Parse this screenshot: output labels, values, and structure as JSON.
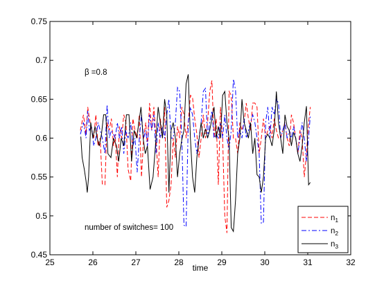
{
  "chart_data": {
    "type": "line",
    "xlabel": "time",
    "ylabel": "",
    "xlim": [
      25,
      32
    ],
    "ylim": [
      0.45,
      0.75
    ],
    "xticks": [
      "25",
      "26",
      "27",
      "28",
      "29",
      "30",
      "31",
      "32"
    ],
    "yticks": [
      "0.45",
      "0.5",
      "0.55",
      "0.6",
      "0.65",
      "0.7",
      "0.75"
    ],
    "grid": false,
    "legend_position": "bottom-right",
    "annotations": {
      "beta": "β =0.8",
      "switches": "number of switches=   100"
    },
    "series": [
      {
        "name": "n1",
        "label_main": "n",
        "label_sub": "1",
        "color": "#ff0000",
        "dash": "6,3",
        "x": [
          25.71,
          25.78,
          25.84,
          25.88,
          25.92,
          25.97,
          26.02,
          26.07,
          26.12,
          26.17,
          26.22,
          26.28,
          26.33,
          26.38,
          26.43,
          26.48,
          26.52,
          26.57,
          26.62,
          26.67,
          26.72,
          26.77,
          26.82,
          26.88,
          26.93,
          26.98,
          27.03,
          27.08,
          27.13,
          27.18,
          27.23,
          27.27,
          27.32,
          27.37,
          27.42,
          27.47,
          27.52,
          27.57,
          27.62,
          27.67,
          27.72,
          27.77,
          27.82,
          27.87,
          27.92,
          27.97,
          28.02,
          28.07,
          28.12,
          28.17,
          28.22,
          28.27,
          28.32,
          28.37,
          28.42,
          28.47,
          28.52,
          28.57,
          28.62,
          28.67,
          28.72,
          28.77,
          28.82,
          28.87,
          28.92,
          28.97,
          29.02,
          29.07,
          29.12,
          29.17,
          29.22,
          29.27,
          29.32,
          29.37,
          29.42,
          29.47,
          29.52,
          29.57,
          29.62,
          29.67,
          29.72,
          29.77,
          29.82,
          29.87,
          29.92,
          29.97,
          30.02,
          30.07,
          30.12,
          30.17,
          30.22,
          30.27,
          30.32,
          30.37,
          30.42,
          30.47,
          30.52,
          30.57,
          30.62,
          30.67,
          30.72,
          30.77,
          30.82,
          30.87,
          30.92,
          30.97,
          31.02,
          31.06
        ],
        "y": [
          0.61,
          0.63,
          0.605,
          0.64,
          0.625,
          0.61,
          0.6,
          0.63,
          0.59,
          0.6,
          0.541,
          0.54,
          0.62,
          0.61,
          0.625,
          0.59,
          0.605,
          0.55,
          0.615,
          0.6,
          0.63,
          0.62,
          0.56,
          0.545,
          0.625,
          0.61,
          0.6,
          0.63,
          0.55,
          0.6,
          0.62,
          0.59,
          0.645,
          0.61,
          0.64,
          0.6,
          0.55,
          0.625,
          0.6,
          0.64,
          0.511,
          0.52,
          0.54,
          0.6,
          0.575,
          0.615,
          0.6,
          0.64,
          0.63,
          0.6,
          0.62,
          0.655,
          0.652,
          0.625,
          0.605,
          0.575,
          0.6,
          0.63,
          0.6,
          0.62,
          0.66,
          0.674,
          0.6,
          0.625,
          0.54,
          0.64,
          0.6,
          0.5,
          0.478,
          0.66,
          0.655,
          0.6,
          0.6,
          0.58,
          0.62,
          0.61,
          0.62,
          0.645,
          0.625,
          0.61,
          0.645,
          0.645,
          0.64,
          0.58,
          0.6,
          0.625,
          0.6,
          0.61,
          0.615,
          0.6,
          0.625,
          0.61,
          0.6,
          0.6,
          0.61,
          0.62,
          0.6,
          0.59,
          0.63,
          0.62,
          0.6,
          0.58,
          0.61,
          0.6,
          0.55,
          0.58,
          0.62,
          0.64
        ]
      },
      {
        "name": "n2",
        "label_main": "n",
        "label_sub": "2",
        "color": "#0000ff",
        "dash": "7,3,2,3",
        "x": [
          25.71,
          25.78,
          25.84,
          25.88,
          25.92,
          25.97,
          26.02,
          26.07,
          26.12,
          26.17,
          26.22,
          26.28,
          26.33,
          26.38,
          26.43,
          26.48,
          26.52,
          26.57,
          26.62,
          26.67,
          26.72,
          26.77,
          26.82,
          26.88,
          26.93,
          26.98,
          27.03,
          27.08,
          27.13,
          27.18,
          27.23,
          27.27,
          27.32,
          27.37,
          27.42,
          27.47,
          27.52,
          27.57,
          27.62,
          27.67,
          27.72,
          27.77,
          27.82,
          27.87,
          27.92,
          27.97,
          28.02,
          28.07,
          28.12,
          28.17,
          28.22,
          28.27,
          28.32,
          28.37,
          28.42,
          28.47,
          28.52,
          28.57,
          28.62,
          28.67,
          28.72,
          28.77,
          28.82,
          28.87,
          28.92,
          28.97,
          29.02,
          29.07,
          29.12,
          29.17,
          29.22,
          29.27,
          29.32,
          29.37,
          29.42,
          29.47,
          29.52,
          29.57,
          29.62,
          29.67,
          29.72,
          29.77,
          29.82,
          29.87,
          29.92,
          29.97,
          30.02,
          30.07,
          30.12,
          30.17,
          30.22,
          30.27,
          30.32,
          30.37,
          30.42,
          30.47,
          30.52,
          30.57,
          30.62,
          30.67,
          30.72,
          30.77,
          30.82,
          30.87,
          30.92,
          30.97,
          31.02,
          31.06
        ],
        "y": [
          0.605,
          0.62,
          0.6,
          0.635,
          0.61,
          0.615,
          0.59,
          0.6,
          0.62,
          0.61,
          0.6,
          0.58,
          0.643,
          0.6,
          0.61,
          0.605,
          0.6,
          0.62,
          0.6,
          0.615,
          0.58,
          0.61,
          0.6,
          0.62,
          0.59,
          0.6,
          0.556,
          0.6,
          0.63,
          0.6,
          0.61,
          0.59,
          0.63,
          0.61,
          0.63,
          0.58,
          0.62,
          0.6,
          0.615,
          0.6,
          0.63,
          0.65,
          0.6,
          0.6,
          0.62,
          0.665,
          0.66,
          0.6,
          0.488,
          0.486,
          0.62,
          0.64,
          0.63,
          0.6,
          0.58,
          0.6,
          0.62,
          0.66,
          0.664,
          0.6,
          0.62,
          0.635,
          0.6,
          0.605,
          0.6,
          0.62,
          0.6,
          0.63,
          0.6,
          0.585,
          0.61,
          0.676,
          0.662,
          0.6,
          0.61,
          0.6,
          0.625,
          0.6,
          0.61,
          0.62,
          0.63,
          0.62,
          0.6,
          0.58,
          0.49,
          0.492,
          0.62,
          0.64,
          0.6,
          0.64,
          0.63,
          0.65,
          0.645,
          0.6,
          0.61,
          0.62,
          0.6,
          0.61,
          0.6,
          0.615,
          0.6,
          0.58,
          0.6,
          0.62,
          0.6,
          0.57,
          0.6,
          0.63
        ]
      },
      {
        "name": "n3",
        "label_main": "n",
        "label_sub": "3",
        "color": "#000000",
        "dash": "",
        "x": [
          25.72,
          25.75,
          25.8,
          25.84,
          25.87,
          25.9,
          25.95,
          26.0,
          26.05,
          26.1,
          26.15,
          26.2,
          26.25,
          26.3,
          26.35,
          26.42,
          26.48,
          26.55,
          26.6,
          26.66,
          26.72,
          26.78,
          26.84,
          26.9,
          26.96,
          27.02,
          27.07,
          27.12,
          27.17,
          27.22,
          27.27,
          27.33,
          27.4,
          27.47,
          27.52,
          27.57,
          27.62,
          27.67,
          27.72,
          27.77,
          27.82,
          27.87,
          27.92,
          27.97,
          28.02,
          28.07,
          28.12,
          28.17,
          28.22,
          28.27,
          28.32,
          28.37,
          28.42,
          28.47,
          28.52,
          28.57,
          28.62,
          28.67,
          28.72,
          28.77,
          28.82,
          28.87,
          28.92,
          28.97,
          29.02,
          29.07,
          29.12,
          29.17,
          29.22,
          29.27,
          29.32,
          29.37,
          29.42,
          29.47,
          29.52,
          29.57,
          29.62,
          29.67,
          29.72,
          29.77,
          29.82,
          29.87,
          29.92,
          29.97,
          30.02,
          30.07,
          30.12,
          30.17,
          30.22,
          30.27,
          30.32,
          30.37,
          30.42,
          30.47,
          30.52,
          30.57,
          30.62,
          30.67,
          30.72,
          30.77,
          30.82,
          30.87,
          30.92,
          30.97,
          31.02,
          31.06
        ],
        "y": [
          0.602,
          0.575,
          0.56,
          0.545,
          0.53,
          0.55,
          0.62,
          0.6,
          0.615,
          0.6,
          0.59,
          0.605,
          0.63,
          0.63,
          0.58,
          0.575,
          0.6,
          0.59,
          0.57,
          0.6,
          0.59,
          0.63,
          0.63,
          0.57,
          0.61,
          0.6,
          0.62,
          0.64,
          0.6,
          0.58,
          0.59,
          0.534,
          0.55,
          0.6,
          0.64,
          0.62,
          0.6,
          0.65,
          0.63,
          0.53,
          0.61,
          0.62,
          0.6,
          0.55,
          0.58,
          0.598,
          0.61,
          0.67,
          0.682,
          0.6,
          0.55,
          0.53,
          0.575,
          0.598,
          0.62,
          0.6,
          0.612,
          0.6,
          0.61,
          0.625,
          0.64,
          0.6,
          0.615,
          0.6,
          0.655,
          0.66,
          0.62,
          0.6,
          0.485,
          0.48,
          0.52,
          0.58,
          0.6,
          0.65,
          0.62,
          0.61,
          0.6,
          0.62,
          0.58,
          0.6,
          0.553,
          0.55,
          0.53,
          0.55,
          0.6,
          0.605,
          0.6,
          0.59,
          0.61,
          0.66,
          0.62,
          0.6,
          0.58,
          0.63,
          0.615,
          0.61,
          0.59,
          0.607,
          0.6,
          0.58,
          0.57,
          0.59,
          0.62,
          0.641,
          0.54,
          0.543
        ]
      }
    ]
  }
}
